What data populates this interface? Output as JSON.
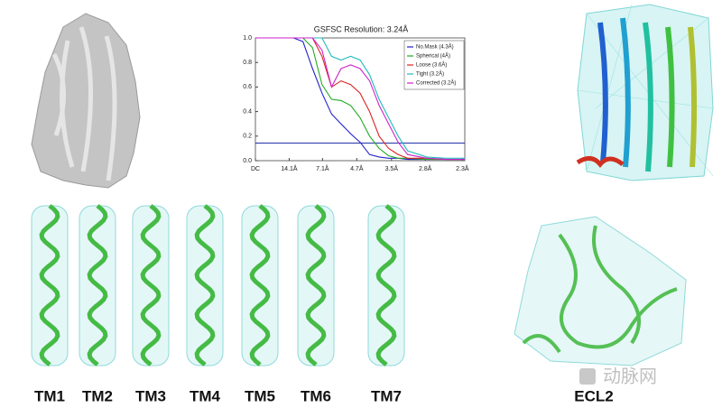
{
  "chart_data": {
    "type": "line",
    "title": "GSFSC Resolution: 3.24Å",
    "x": [
      0,
      0.04,
      0.08,
      0.1,
      0.12,
      0.14,
      0.16,
      0.18,
      0.2,
      0.22,
      0.24,
      0.26,
      0.28,
      0.3,
      0.32,
      0.36,
      0.4,
      0.44
    ],
    "series": [
      {
        "name": "No.Mask (4.3Å)",
        "color": "#2222cc",
        "values": [
          1,
          1,
          1,
          0.97,
          0.75,
          0.55,
          0.38,
          0.3,
          0.22,
          0.15,
          0.05,
          0.03,
          0.02,
          0.02,
          0.01,
          0.01,
          0.01,
          0.01
        ]
      },
      {
        "name": "Spherical (4Å)",
        "color": "#22aa22",
        "values": [
          1,
          1,
          1,
          1,
          0.92,
          0.62,
          0.5,
          0.49,
          0.45,
          0.35,
          0.2,
          0.1,
          0.04,
          0.02,
          0.02,
          0.01,
          0.01,
          0.01
        ]
      },
      {
        "name": "Loose (3.6Å)",
        "color": "#dd2222",
        "values": [
          1,
          1,
          1,
          1,
          1,
          0.85,
          0.6,
          0.65,
          0.62,
          0.55,
          0.4,
          0.2,
          0.1,
          0.05,
          0.02,
          0.02,
          0.01,
          0.01
        ]
      },
      {
        "name": "Tight (3.2Å)",
        "color": "#22bbbb",
        "values": [
          1,
          1,
          1,
          1,
          1,
          1,
          0.85,
          0.82,
          0.85,
          0.82,
          0.7,
          0.5,
          0.35,
          0.2,
          0.08,
          0.03,
          0.02,
          0.02
        ]
      },
      {
        "name": "Corrected (3.2Å)",
        "color": "#cc22cc",
        "values": [
          1,
          1,
          1,
          1,
          1,
          0.9,
          0.6,
          0.75,
          0.78,
          0.75,
          0.65,
          0.45,
          0.3,
          0.15,
          0.05,
          0.02,
          0.01,
          0.01
        ]
      }
    ],
    "threshold": 0.143,
    "xlim": [
      0,
      0.44
    ],
    "ylim": [
      0,
      1
    ],
    "xticks": [
      {
        "value": 0,
        "label": "DC"
      },
      {
        "value": 0.071,
        "label": "14.1Å"
      },
      {
        "value": 0.141,
        "label": "7.1Å"
      },
      {
        "value": 0.213,
        "label": "4.7Å"
      },
      {
        "value": 0.286,
        "label": "3.5Å"
      },
      {
        "value": 0.357,
        "label": "2.8Å"
      },
      {
        "value": 0.435,
        "label": "2.3Å"
      }
    ],
    "yticks": [
      {
        "value": 0,
        "label": "0.0"
      },
      0.2,
      0.4,
      0.6,
      0.8,
      {
        "value": 1,
        "label": "1.0"
      }
    ]
  },
  "figure": {
    "helix_labels": [
      "TM1",
      "TM2",
      "TM3",
      "TM4",
      "TM5",
      "TM6",
      "TM7"
    ],
    "loop_label": "ECL2",
    "watermark": "动脉网"
  }
}
